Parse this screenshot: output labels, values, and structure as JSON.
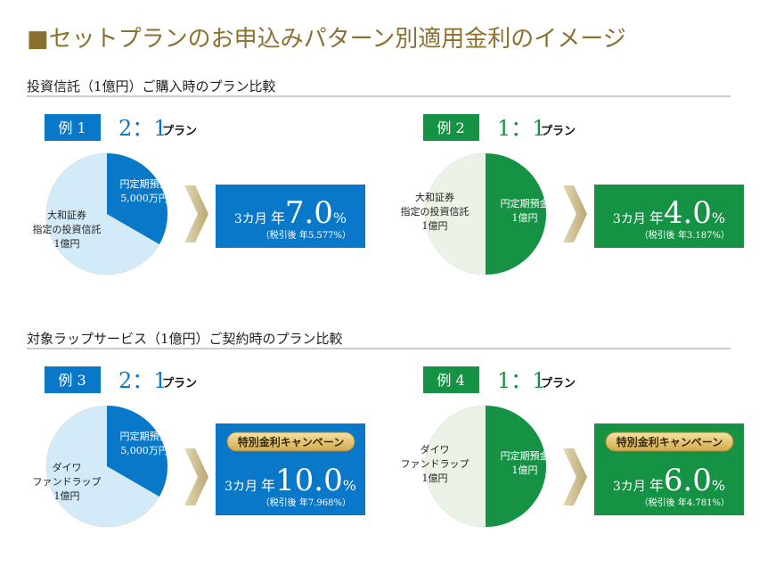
{
  "title": "■セットプランのお申込みパターン別適用金利のイメージ",
  "sections": [
    {
      "heading": "投資信託（1億円）ご購入時のプラン比較",
      "examples": [
        {
          "label": "例 1",
          "ratio": "2：1",
          "plan": "プラン",
          "color": "#0a78c8",
          "deposit": [
            "円定期預金",
            "5,000万円"
          ],
          "other": [
            "大和証券",
            "指定の投資信託",
            "1億円"
          ],
          "term": "3カ月",
          "annual": "年",
          "rate": "7.0",
          "unit": "%",
          "after_tax": "（税引後 年5.577%）"
        },
        {
          "label": "例 2",
          "ratio": "1：1",
          "plan": "プラン",
          "color": "#169245",
          "deposit": [
            "円定期預金",
            "1億円"
          ],
          "other": [
            "大和証券",
            "指定の投資信託",
            "1億円"
          ],
          "term": "3カ月",
          "annual": "年",
          "rate": "4.0",
          "unit": "%",
          "after_tax": "（税引後 年3.187%）"
        }
      ]
    },
    {
      "heading": "対象ラップサービス（1億円）ご契約時のプラン比較",
      "examples": [
        {
          "label": "例 3",
          "ratio": "2：1",
          "plan": "プラン",
          "color": "#0a78c8",
          "deposit": [
            "円定期預金",
            "5,000万円"
          ],
          "other": [
            "ダイワ",
            "ファンドラップ",
            "1億円"
          ],
          "campaign": "特別金利キャンペーン",
          "term": "3カ月",
          "annual": "年",
          "rate": "10.0",
          "unit": "%",
          "after_tax": "（税引後 年7.968%）"
        },
        {
          "label": "例 4",
          "ratio": "1：1",
          "plan": "プラン",
          "color": "#169245",
          "deposit": [
            "円定期預金",
            "1億円"
          ],
          "other": [
            "ダイワ",
            "ファンドラップ",
            "1億円"
          ],
          "campaign": "特別金利キャンペーン",
          "term": "3カ月",
          "annual": "年",
          "rate": "6.0",
          "unit": "%",
          "after_tax": "（税引後 年4.781%）"
        }
      ]
    }
  ]
}
